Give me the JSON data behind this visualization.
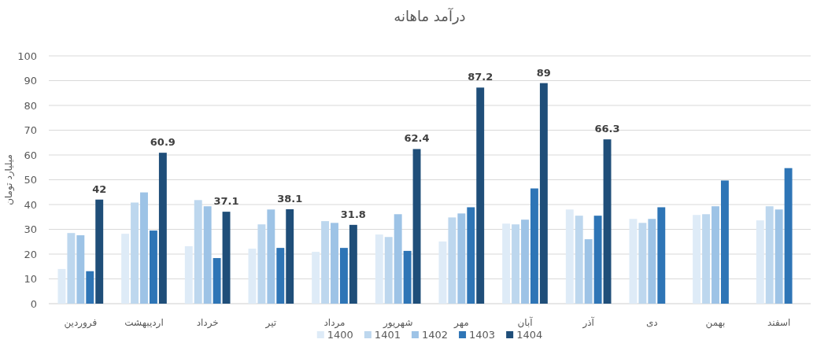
{
  "chart_data": {
    "type": "bar",
    "title": "درآمد ماهانه",
    "ylabel": "میلیارد تومان",
    "categories": [
      "فروردین",
      "اردیبهشت",
      "خرداد",
      "تیر",
      "مرداد",
      "شهریور",
      "مهر",
      "آبان",
      "آذر",
      "دی",
      "بهمن",
      "اسفند"
    ],
    "series": [
      {
        "name": "1400",
        "color": "#deebf7",
        "values": [
          14.0,
          28.2,
          23.2,
          22.2,
          20.9,
          27.9,
          25.1,
          32.3,
          38.0,
          34.2,
          35.8,
          33.6
        ]
      },
      {
        "name": "1401",
        "color": "#bdd7ee",
        "values": [
          28.5,
          40.8,
          41.8,
          32.0,
          33.3,
          26.9,
          34.8,
          32.0,
          35.5,
          32.6,
          36.1,
          39.3
        ]
      },
      {
        "name": "1402",
        "color": "#9dc3e6",
        "values": [
          27.6,
          44.9,
          39.3,
          38.0,
          32.6,
          36.1,
          36.4,
          33.9,
          26.0,
          34.2,
          39.3,
          38.0
        ]
      },
      {
        "name": "1403",
        "color": "#2e75b6",
        "values": [
          13.1,
          29.5,
          18.4,
          22.5,
          22.5,
          21.3,
          38.9,
          46.5,
          35.5,
          38.9,
          49.7,
          54.7
        ]
      },
      {
        "name": "1404",
        "color": "#1f4e79",
        "values": [
          42,
          60.9,
          37.1,
          38.1,
          31.8,
          62.4,
          87.2,
          89,
          66.3,
          null,
          null,
          null
        ],
        "value_labels": [
          "42",
          "60.9",
          "37.1",
          "38.1",
          "31.8",
          "62.4",
          "87.2",
          "89",
          "66.3",
          null,
          null,
          null
        ]
      }
    ],
    "ylim": [
      0,
      100
    ],
    "yticks": [
      0,
      10,
      20,
      30,
      40,
      50,
      60,
      70,
      80,
      90,
      100
    ],
    "grid": "y",
    "legend": "bottom"
  }
}
